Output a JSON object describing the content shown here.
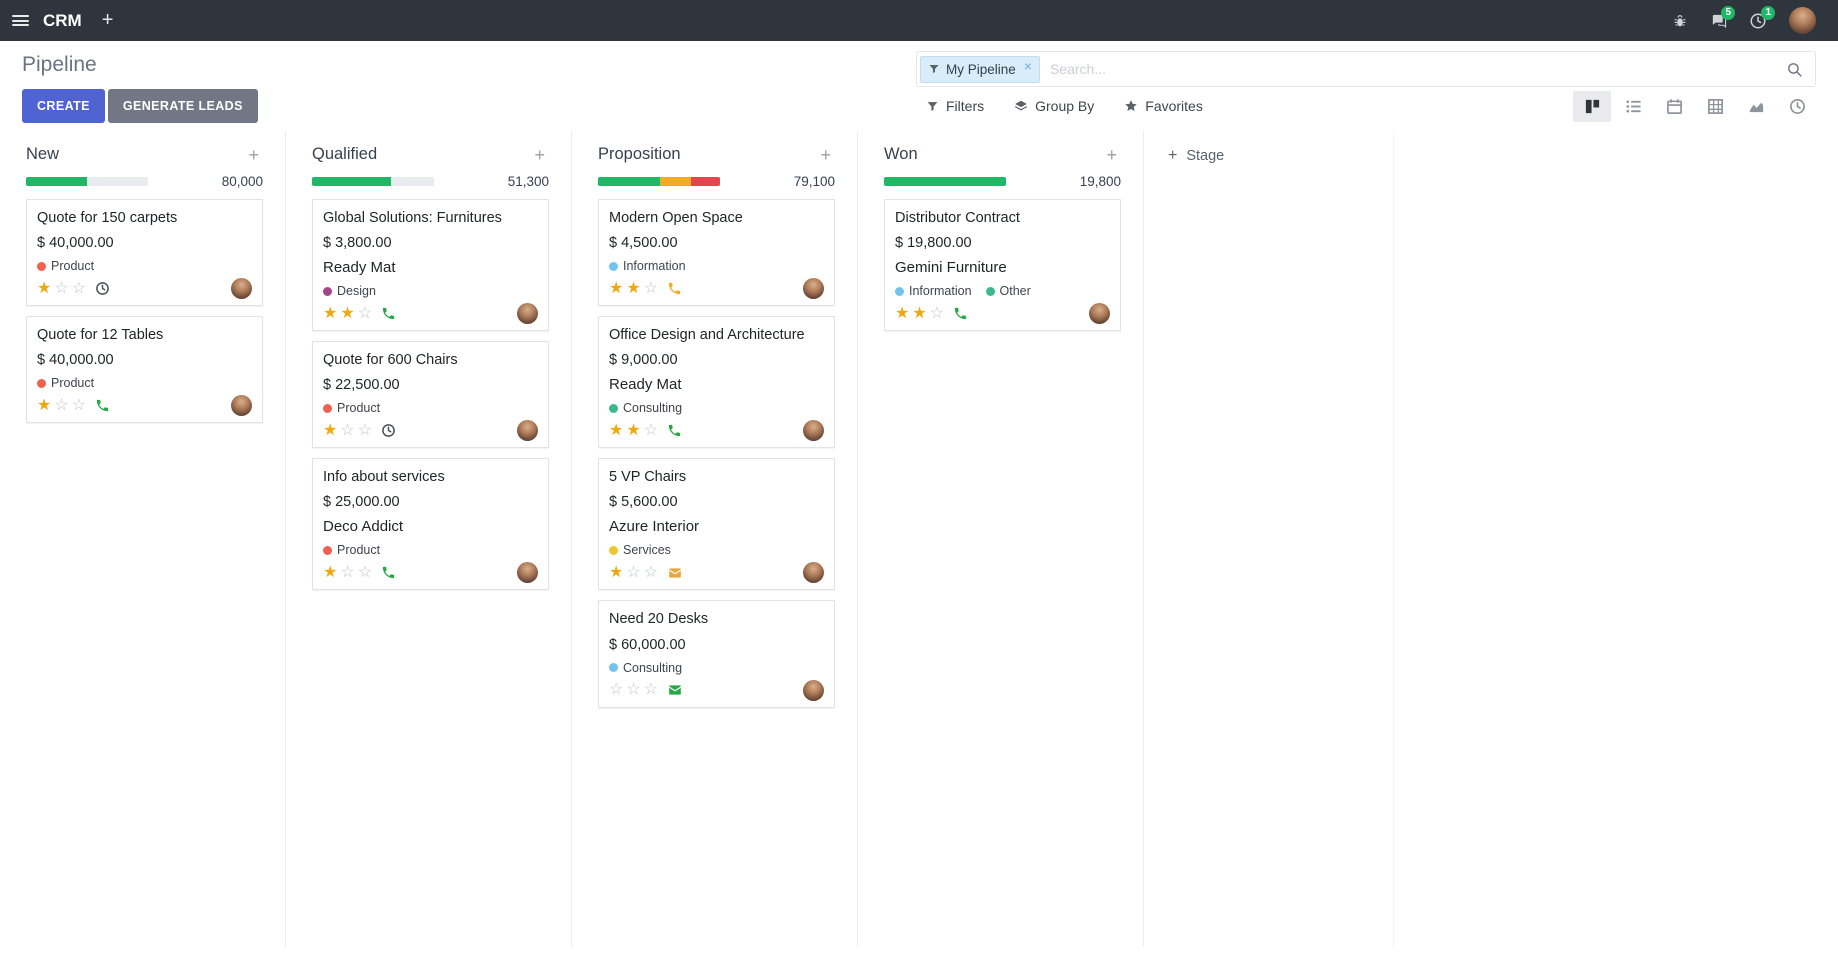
{
  "colors": {
    "topbar_bg": "#2e353c",
    "primary": "#4f63d2",
    "secondary": "#717784",
    "badge_green": "#21b766",
    "star_gold": "#f0a810",
    "progress_green": "#21b766",
    "progress_yellow": "#f0ad24",
    "progress_red": "#e3474d"
  },
  "topbar": {
    "app_name": "CRM",
    "plus_label": "+",
    "messages_badge": "5",
    "activities_badge": "1"
  },
  "control_panel": {
    "title": "Pipeline",
    "create_label": "CREATE",
    "generate_leads_label": "GENERATE LEADS",
    "search": {
      "facet": "My Pipeline",
      "facet_remove": "×",
      "placeholder": "Search..."
    },
    "menus": {
      "filters": "Filters",
      "group_by": "Group By",
      "favorites": "Favorites"
    },
    "views": [
      {
        "name": "kanban",
        "active": true
      },
      {
        "name": "list",
        "active": false
      },
      {
        "name": "calendar",
        "active": false
      },
      {
        "name": "pivot",
        "active": false
      },
      {
        "name": "graph",
        "active": false
      },
      {
        "name": "activity",
        "active": false
      }
    ]
  },
  "kanban": {
    "column_add_label": "+",
    "add_stage_plus": "+",
    "add_stage_label": "Stage",
    "columns": [
      {
        "name": "New",
        "total": "80,000",
        "progress": [
          {
            "color": "#21b766",
            "pct": 50
          },
          {
            "color": "#e9ecef",
            "pct": 50
          }
        ],
        "cards": [
          {
            "title": "Quote for 150 carpets",
            "amount": "$ 40,000.00",
            "partner": "",
            "tags": [
              {
                "label": "Product",
                "color": "#f06050"
              }
            ],
            "stars": 1,
            "activity": {
              "type": "clock",
              "color": "#495057"
            }
          },
          {
            "title": "Quote for 12 Tables",
            "amount": "$ 40,000.00",
            "partner": "",
            "tags": [
              {
                "label": "Product",
                "color": "#f06050"
              }
            ],
            "stars": 1,
            "activity": {
              "type": "phone",
              "color": "#28a745"
            }
          }
        ]
      },
      {
        "name": "Qualified",
        "total": "51,300",
        "progress": [
          {
            "color": "#21b766",
            "pct": 65
          },
          {
            "color": "#e9ecef",
            "pct": 35
          }
        ],
        "cards": [
          {
            "title": "Global Solutions: Furnitures",
            "amount": "$ 3,800.00",
            "partner": "Ready Mat",
            "tags": [
              {
                "label": "Design",
                "color": "#a24689"
              }
            ],
            "stars": 2,
            "activity": {
              "type": "phone",
              "color": "#28a745"
            }
          },
          {
            "title": "Quote for 600 Chairs",
            "amount": "$ 22,500.00",
            "partner": "",
            "tags": [
              {
                "label": "Product",
                "color": "#f06050"
              }
            ],
            "stars": 1,
            "activity": {
              "type": "clock",
              "color": "#495057"
            }
          },
          {
            "title": "Info about services",
            "amount": "$ 25,000.00",
            "partner": "Deco Addict",
            "tags": [
              {
                "label": "Product",
                "color": "#f06050"
              }
            ],
            "stars": 1,
            "activity": {
              "type": "phone",
              "color": "#28a745"
            }
          }
        ]
      },
      {
        "name": "Proposition",
        "total": "79,100",
        "progress": [
          {
            "color": "#21b766",
            "pct": 51
          },
          {
            "color": "#f0ad24",
            "pct": 25
          },
          {
            "color": "#e3474d",
            "pct": 24
          }
        ],
        "cards": [
          {
            "title": "Modern Open Space",
            "amount": "$ 4,500.00",
            "partner": "",
            "tags": [
              {
                "label": "Information",
                "color": "#72c4ef"
              }
            ],
            "stars": 2,
            "activity": {
              "type": "phone",
              "color": "#f0ad24"
            }
          },
          {
            "title": "Office Design and Architecture",
            "amount": "$ 9,000.00",
            "partner": "Ready Mat",
            "tags": [
              {
                "label": "Consulting",
                "color": "#3cb98c"
              }
            ],
            "stars": 2,
            "activity": {
              "type": "phone",
              "color": "#28a745"
            }
          },
          {
            "title": "5 VP Chairs",
            "amount": "$ 5,600.00",
            "partner": "Azure Interior",
            "tags": [
              {
                "label": "Services",
                "color": "#efc631"
              }
            ],
            "stars": 1,
            "activity": {
              "type": "mail",
              "color": "#e8a93c"
            }
          },
          {
            "title": "Need 20 Desks",
            "amount": "$ 60,000.00",
            "partner": "",
            "tags": [
              {
                "label": "Consulting",
                "color": "#72c4ef"
              }
            ],
            "stars": 0,
            "activity": {
              "type": "mail",
              "color": "#28a745"
            }
          }
        ]
      },
      {
        "name": "Won",
        "total": "19,800",
        "progress": [
          {
            "color": "#21b766",
            "pct": 100
          }
        ],
        "cards": [
          {
            "title": "Distributor Contract",
            "amount": "$ 19,800.00",
            "partner": "Gemini Furniture",
            "tags": [
              {
                "label": "Information",
                "color": "#72c4ef"
              },
              {
                "label": "Other",
                "color": "#3cb98c"
              }
            ],
            "stars": 2,
            "activity": {
              "type": "phone",
              "color": "#28a745"
            }
          }
        ]
      }
    ]
  }
}
